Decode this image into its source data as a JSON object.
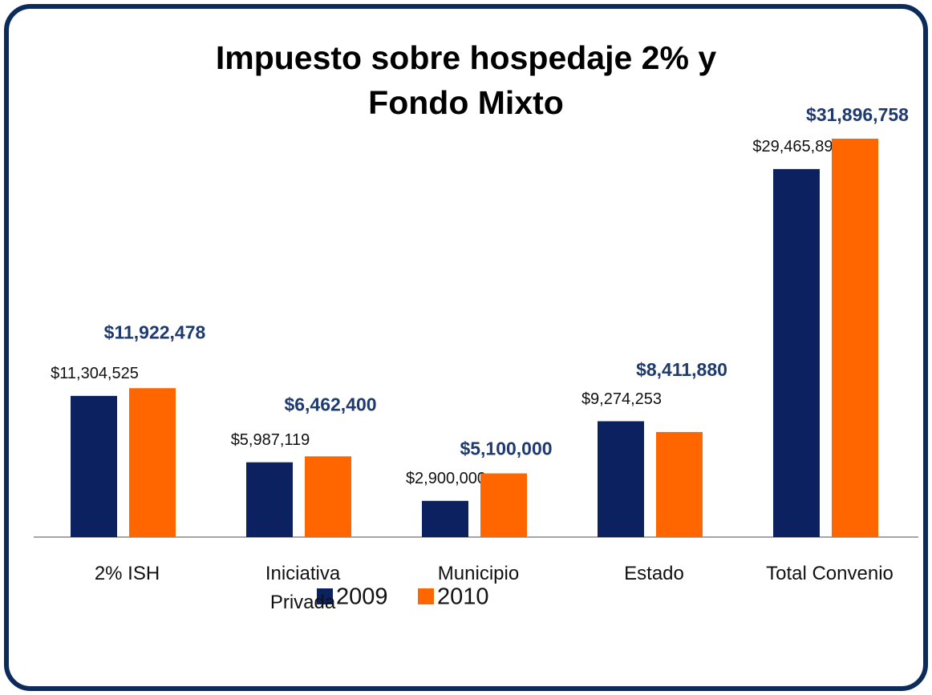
{
  "chart_data": {
    "type": "bar",
    "title": "Impuesto sobre hospedaje 2% y Fondo Mixto",
    "categories": [
      "2% ISH",
      "Iniciativa Privada",
      "Municipio",
      "Estado",
      "Total Convenio"
    ],
    "series": [
      {
        "name": "2009",
        "color": "#0b2160",
        "values": [
          11304525,
          5987119,
          2900000,
          9274253,
          29465897
        ],
        "value_labels": [
          "$11,304,525",
          "$5,987,119",
          "$2,900,000",
          "$9,274,253",
          "$29,465,897"
        ]
      },
      {
        "name": "2010",
        "color": "#ff6600",
        "values": [
          11922478,
          6462400,
          5100000,
          8411880,
          31896758
        ],
        "value_labels": [
          "$11,922,478",
          "$6,462,400",
          "$5,100,000",
          "$8,411,880",
          "$31,896,758"
        ]
      }
    ],
    "legend": "bottom"
  }
}
